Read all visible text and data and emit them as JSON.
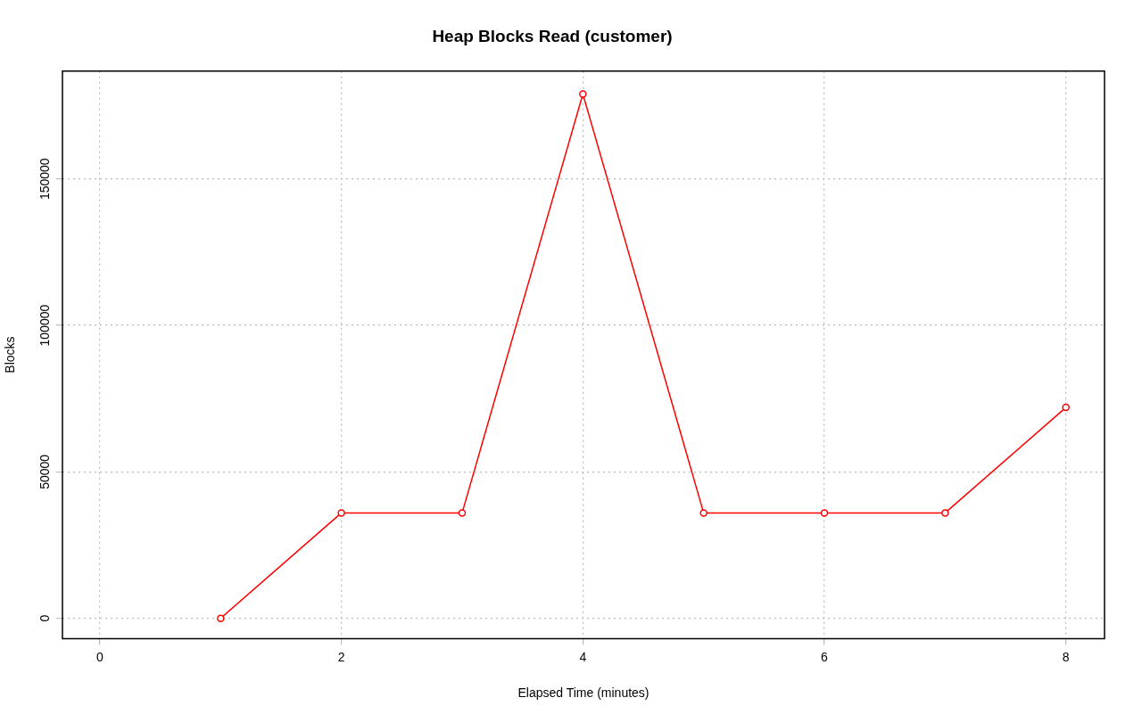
{
  "chart_data": {
    "type": "line",
    "title": "Heap Blocks Read (customer)",
    "xlabel": "Elapsed Time (minutes)",
    "ylabel": "Blocks",
    "x": [
      1,
      2,
      3,
      4,
      5,
      6,
      7,
      8
    ],
    "series": [
      {
        "color": "#ff0000",
        "values": [
          0,
          36000,
          36000,
          179000,
          36000,
          36000,
          36000,
          72000
        ]
      }
    ],
    "xlim": [
      -0.31,
      8.32
    ],
    "xticks": [
      0,
      2,
      4,
      6,
      8
    ],
    "ylim": [
      -6900,
      186800
    ],
    "yticks": [
      0,
      50000,
      100000,
      150000
    ],
    "grid": true,
    "legend": false,
    "marker": "circle",
    "line_style": "solid"
  }
}
